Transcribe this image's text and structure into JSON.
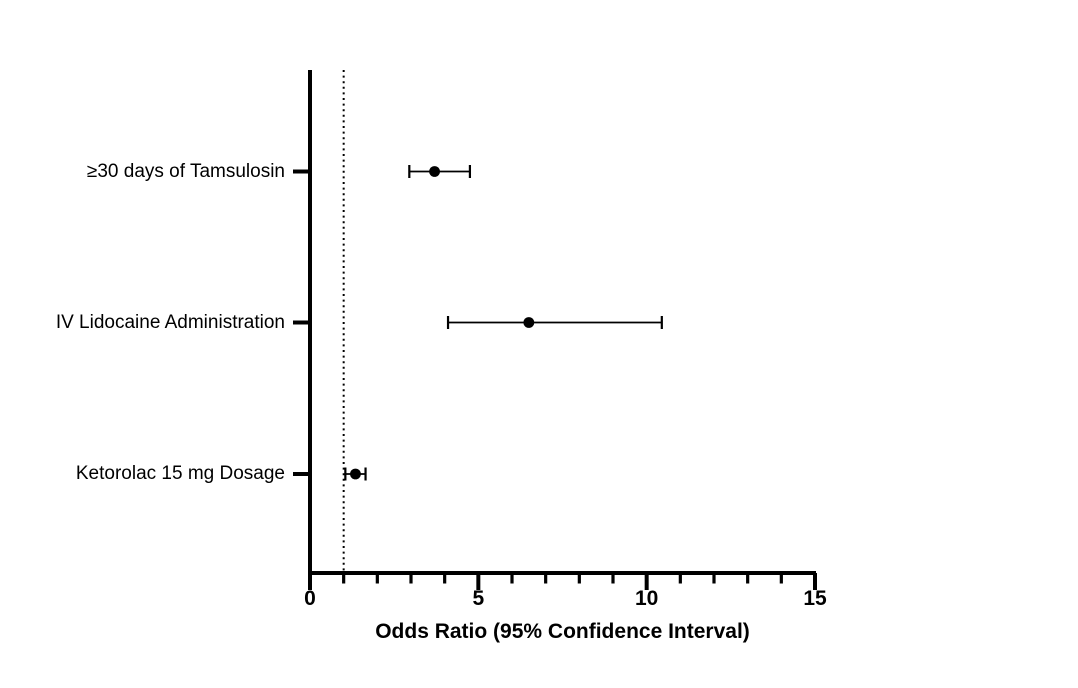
{
  "chart_data": {
    "type": "scatter",
    "subtype": "forest-plot",
    "title": "",
    "xlabel": "Odds Ratio (95% Confidence Interval)",
    "ylabel": "",
    "categories": [
      "≥30 days of Tamsulosin",
      "IV Lidocaine Administration",
      "Ketorolac 15 mg Dosage"
    ],
    "series": [
      {
        "name": "Odds Ratio (95% CI)",
        "values": [
          {
            "category": "≥30 days of Tamsulosin",
            "or": 3.7,
            "ci_low": 2.95,
            "ci_high": 4.75
          },
          {
            "category": "IV Lidocaine Administration",
            "or": 6.5,
            "ci_low": 4.1,
            "ci_high": 10.45
          },
          {
            "category": "Ketorolac 15 mg Dosage",
            "or": 1.35,
            "ci_low": 1.05,
            "ci_high": 1.65
          }
        ]
      }
    ],
    "xlim": [
      0,
      15
    ],
    "x_ticks_major": [
      0,
      5,
      10,
      15
    ],
    "x_minor_tick_step": 1,
    "reference_line_x": 1,
    "reference_line_style": "dotted",
    "marker_color": "#000000",
    "axis_color": "#000000",
    "background_color": "#ffffff",
    "grid": false,
    "legend": false
  }
}
